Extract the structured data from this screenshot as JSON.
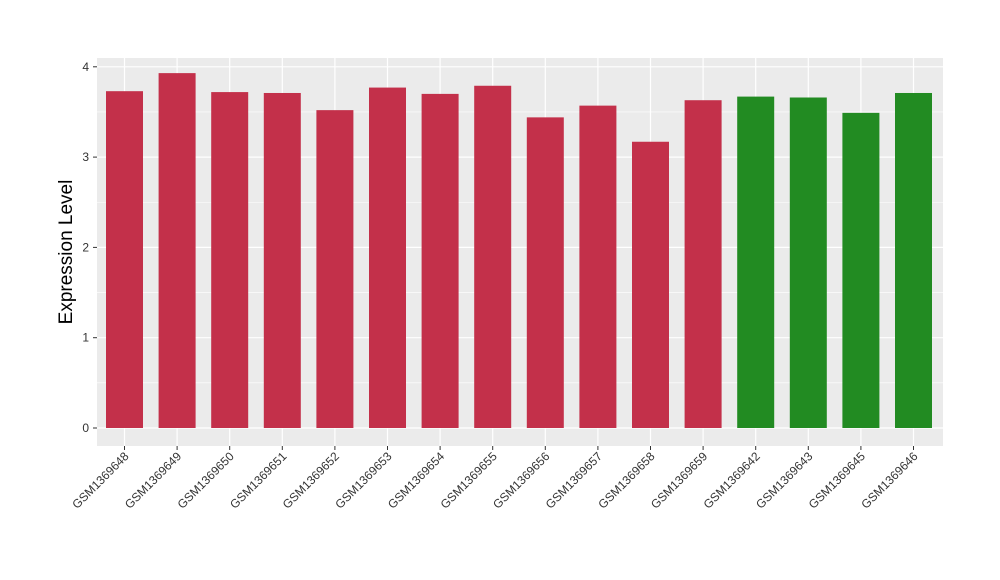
{
  "chart_data": {
    "type": "bar",
    "title": "",
    "xlabel": "",
    "ylabel": "Expression Level",
    "ylim": [
      0,
      4.1
    ],
    "yticks": [
      0,
      1,
      2,
      3,
      4
    ],
    "grid": true,
    "legend": "none",
    "categories": [
      "GSM1369648",
      "GSM1369649",
      "GSM1369650",
      "GSM1369651",
      "GSM1369652",
      "GSM1369653",
      "GSM1369654",
      "GSM1369655",
      "GSM1369656",
      "GSM1369657",
      "GSM1369658",
      "GSM1369659",
      "GSM1369642",
      "GSM1369643",
      "GSM1369645",
      "GSM1369646"
    ],
    "values": [
      3.73,
      3.93,
      3.72,
      3.71,
      3.52,
      3.77,
      3.7,
      3.79,
      3.44,
      3.57,
      3.17,
      3.63,
      3.67,
      3.66,
      3.49,
      3.71
    ],
    "bar_colors": [
      "#c3304a",
      "#c3304a",
      "#c3304a",
      "#c3304a",
      "#c3304a",
      "#c3304a",
      "#c3304a",
      "#c3304a",
      "#c3304a",
      "#c3304a",
      "#c3304a",
      "#c3304a",
      "#228b22",
      "#228b22",
      "#228b22",
      "#228b22"
    ],
    "panel_background": "#ebebeb",
    "gridline_color": "#ffffff"
  }
}
